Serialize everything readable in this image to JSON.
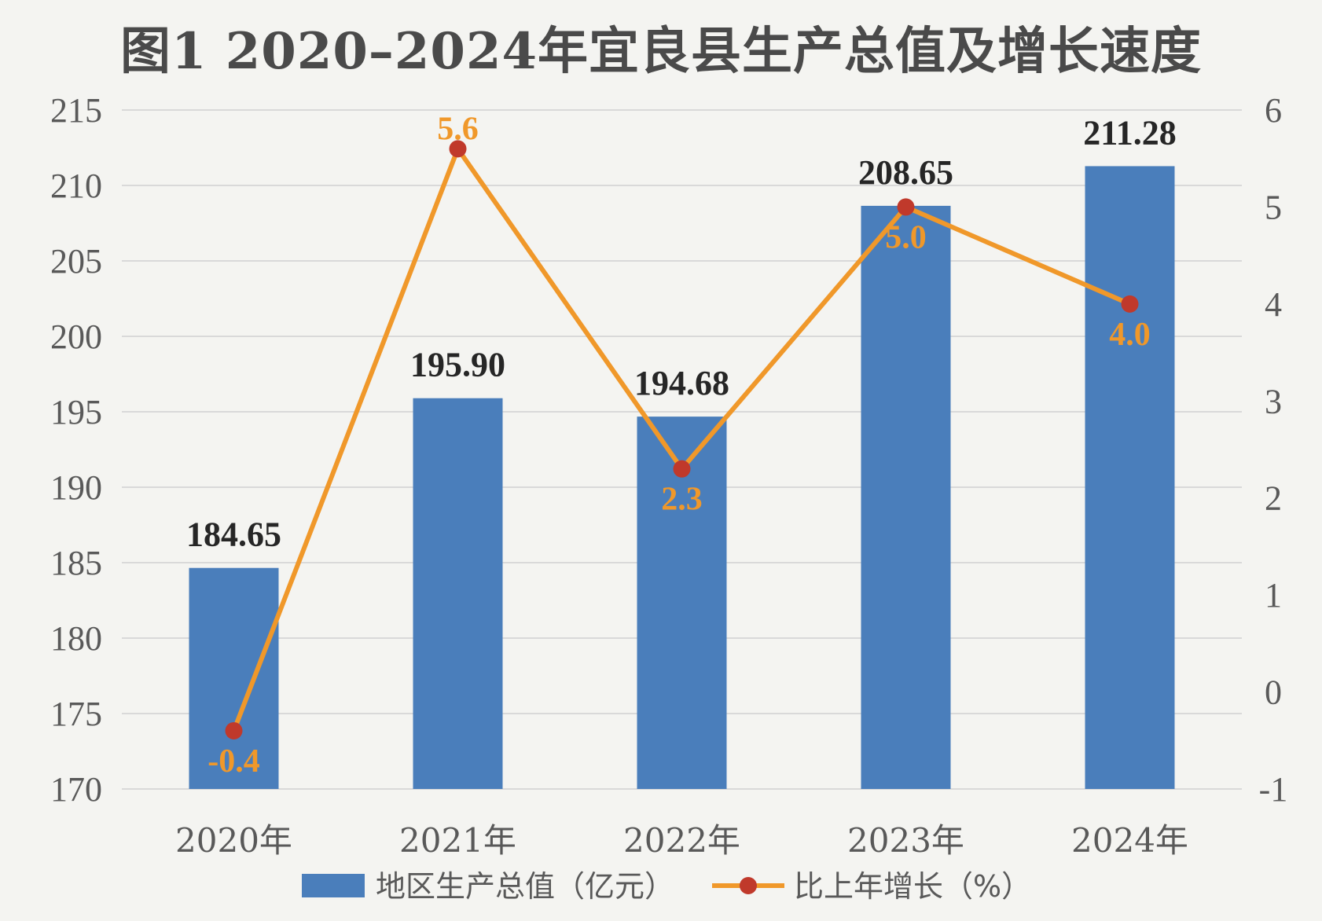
{
  "chart_data": {
    "type": "bar",
    "title": "图1  2020–2024年宜良县生产总值及增长速度",
    "categories": [
      "2020年",
      "2021年",
      "2022年",
      "2023年",
      "2024年"
    ],
    "series": [
      {
        "name": "地区生产总值（亿元）",
        "type": "bar",
        "axis": "left",
        "color": "#4a7ebb",
        "values": [
          184.65,
          195.9,
          194.68,
          208.65,
          211.28
        ],
        "labels": [
          "184.65",
          "195.90",
          "194.68",
          "208.65",
          "211.28"
        ]
      },
      {
        "name": "比上年增长（%）",
        "type": "line",
        "axis": "right",
        "color": "#f0982a",
        "marker_color": "#c0392b",
        "values": [
          -0.4,
          5.6,
          2.3,
          5.0,
          4.0
        ],
        "labels": [
          "-0.4",
          "5.6",
          "2.3",
          "5.0",
          "4.0"
        ]
      }
    ],
    "left_axis": {
      "ylim": [
        170,
        215
      ],
      "ticks": [
        "170",
        "175",
        "180",
        "185",
        "190",
        "195",
        "200",
        "205",
        "210",
        "215"
      ]
    },
    "right_axis": {
      "ylim": [
        -1,
        6
      ],
      "ticks": [
        "-1",
        "0",
        "1",
        "2",
        "3",
        "4",
        "5",
        "6"
      ]
    },
    "grid": true,
    "legend_position": "bottom"
  }
}
